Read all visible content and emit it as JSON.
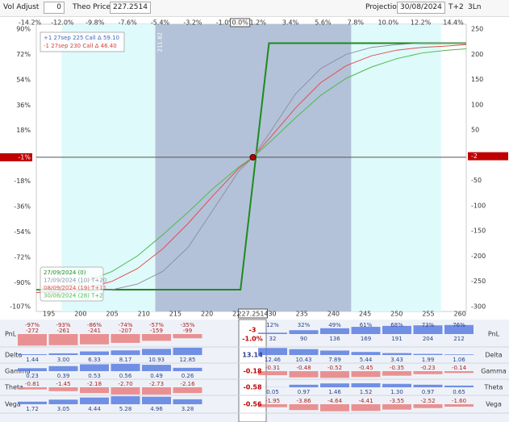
{
  "toolbar": {
    "vol_adjust_label": "Vol Adjust",
    "vol_adjust_value": "0",
    "theo_price_label": "Theo Price",
    "theo_price_value": "227.2514",
    "projection_label": "Projection",
    "projection_value": "30/08/2024",
    "t_offset": "T+2",
    "lines": "3Ln"
  },
  "chart_data": {
    "type": "line",
    "xlim": [
      193,
      261
    ],
    "xticks": [
      195,
      200,
      205,
      210,
      215,
      220,
      225,
      230,
      235,
      240,
      245,
      250,
      255,
      260
    ],
    "current_x": {
      "value": 227.2514,
      "label": "227.2514"
    },
    "x2lim": [
      -14.2,
      14.4
    ],
    "x2ticks": [
      {
        "value": -14.2,
        "label": "-14.2%"
      },
      {
        "value": -12.0,
        "label": "-12.0%"
      },
      {
        "value": -9.8,
        "label": "-9.8%"
      },
      {
        "value": -7.6,
        "label": "-7.6%"
      },
      {
        "value": -5.4,
        "label": "-5.4%"
      },
      {
        "value": -3.2,
        "label": "-3.2%"
      },
      {
        "value": -1.0,
        "label": "-1.0%"
      },
      {
        "value": 0,
        "label": "0.0%",
        "highlight": true
      },
      {
        "value": 1.2,
        "label": "1.2%"
      },
      {
        "value": 3.4,
        "label": "3.4%"
      },
      {
        "value": 5.6,
        "label": "5.6%"
      },
      {
        "value": 7.8,
        "label": "7.8%"
      },
      {
        "value": 10.0,
        "label": "10.0%"
      },
      {
        "value": 12.2,
        "label": "12.2%"
      },
      {
        "value": 14.4,
        "label": "14.4%"
      }
    ],
    "ylim": [
      -107,
      90
    ],
    "yticks": [
      {
        "value": 90,
        "label": "90%"
      },
      {
        "value": 72,
        "label": "72%"
      },
      {
        "value": 54,
        "label": "54%"
      },
      {
        "value": 36,
        "label": "36%"
      },
      {
        "value": 18,
        "label": "18%"
      },
      {
        "value": -1,
        "label": "-1%",
        "highlight": true
      },
      {
        "value": -18,
        "label": "-18%"
      },
      {
        "value": -36,
        "label": "-36%"
      },
      {
        "value": -54,
        "label": "-54%"
      },
      {
        "value": -72,
        "label": "-72%"
      },
      {
        "value": -90,
        "label": "-90%"
      },
      {
        "value": -107,
        "label": "-107%"
      }
    ],
    "y2lim": [
      -300,
      250
    ],
    "y2ticks": [
      250,
      200,
      150,
      100,
      50,
      -2,
      -50,
      -100,
      -150,
      -200,
      -250,
      -300
    ],
    "y2highlight": -2,
    "bands": [
      {
        "from": 197,
        "to": 257,
        "color": "#dffafa"
      },
      {
        "from": 211.82,
        "to": 242.8,
        "color": "#b3c2d8",
        "label": "211.82"
      }
    ],
    "legend_top": [
      {
        "text": "+1 27sep  225 Call Δ  59.10",
        "color": "#4a63c8"
      },
      {
        "text": "-1 27sep  230 Call Δ  46.40",
        "color": "#d94040"
      }
    ],
    "series": [
      {
        "name": "27/09/2024 (0)",
        "color": "#1e8a1e",
        "width": 2,
        "x": [
          193,
          225.3,
          229.8,
          261
        ],
        "values": [
          -95,
          -95,
          80,
          80
        ]
      },
      {
        "name": "17/09/2024 (10) T+20",
        "color": "#9090a4",
        "width": 1,
        "x": [
          193,
          197,
          201,
          205,
          209,
          213,
          217,
          221,
          225,
          227.2514,
          230,
          234,
          238,
          242,
          246,
          250,
          254,
          258,
          261
        ],
        "values": [
          -97,
          -97,
          -96,
          -95,
          -91,
          -82,
          -65,
          -38,
          -11,
          -1,
          17,
          44,
          62,
          72,
          77,
          79,
          80,
          80,
          80
        ]
      },
      {
        "name": "08/09/2024 (19) T+11",
        "color": "#e05050",
        "width": 1,
        "x": [
          193,
          197,
          201,
          205,
          209,
          213,
          217,
          221,
          225,
          227.2514,
          230,
          234,
          238,
          242,
          246,
          250,
          254,
          258,
          261
        ],
        "values": [
          -97,
          -96,
          -94,
          -89,
          -80,
          -66,
          -48,
          -28,
          -9,
          -1,
          13,
          34,
          52,
          64,
          71,
          75,
          77,
          78,
          79
        ]
      },
      {
        "name": "30/08/2024 (28) T+2",
        "color": "#4cbb4c",
        "width": 1,
        "x": [
          193,
          197,
          201,
          205,
          209,
          213,
          217,
          221,
          225,
          227.2514,
          230,
          234,
          238,
          242,
          246,
          250,
          254,
          258,
          261
        ],
        "values": [
          -95,
          -93,
          -89,
          -82,
          -71,
          -56,
          -40,
          -23,
          -8,
          -1,
          10,
          27,
          43,
          55,
          63,
          69,
          73,
          75,
          76
        ]
      }
    ]
  },
  "greeks": {
    "rows": [
      {
        "label": "PnL",
        "left": [
          "-272",
          "-261",
          "-241",
          "-207",
          "-159",
          "-99"
        ],
        "left_pct": [
          "-97%",
          "-93%",
          "-86%",
          "-74%",
          "-57%",
          "-35%"
        ],
        "center": "-3",
        "center_pct": "-1.0%",
        "right": [
          "32",
          "90",
          "136",
          "169",
          "191",
          "204",
          "212"
        ],
        "right_pct": [
          "12%",
          "32%",
          "49%",
          "61%",
          "68%",
          "73%",
          "76%"
        ]
      },
      {
        "label": "Delta",
        "left": [
          "1.44",
          "3.00",
          "6.33",
          "8.17",
          "10.93",
          "12.85"
        ],
        "center": "13.14",
        "right": [
          "12.46",
          "10.43",
          "7.89",
          "5.44",
          "3.43",
          "1.99",
          "1.06"
        ]
      },
      {
        "label": "Gamma",
        "left": [
          "0.23",
          "0.39",
          "0.53",
          "0.56",
          "0.49",
          "0.26"
        ],
        "center": "-0.18",
        "right": [
          "-0.31",
          "-0.48",
          "-0.52",
          "-0.45",
          "-0.35",
          "-0.23",
          "-0.14"
        ]
      },
      {
        "label": "Theta",
        "left": [
          "-0.81",
          "-1.45",
          "-2.18",
          "-2.70",
          "-2.73",
          "-2.16"
        ],
        "center": "-0.58",
        "right": [
          "0.05",
          "0.97",
          "1.46",
          "1.52",
          "1.30",
          "0.97",
          "0.65"
        ]
      },
      {
        "label": "Vega",
        "left": [
          "1.72",
          "3.05",
          "4.44",
          "5.28",
          "4.96",
          "3.28"
        ],
        "center": "-0.56",
        "right": [
          "-1.95",
          "-3.86",
          "-4.64",
          "-4.41",
          "-3.55",
          "-2.52",
          "-1.60"
        ]
      }
    ]
  }
}
